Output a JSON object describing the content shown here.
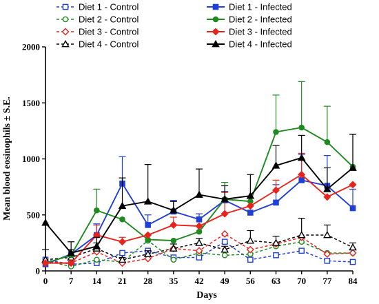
{
  "chart_data": {
    "type": "line",
    "xlabel": "Days",
    "ylabel": "Mean blood eosinophils ± S.E.",
    "ylim": [
      0,
      2000
    ],
    "x": [
      0,
      7,
      14,
      21,
      28,
      35,
      42,
      49,
      56,
      63,
      70,
      77,
      84
    ],
    "x_ticks": [
      "0",
      "7",
      "14",
      "21",
      "28",
      "35",
      "42",
      "49",
      "56",
      "63",
      "70",
      "77",
      "84"
    ],
    "y_ticks": [
      "0",
      "500",
      "1000",
      "1500",
      "2000"
    ],
    "y_tick_values": [
      0,
      500,
      1000,
      1500,
      2000
    ],
    "legend_position": "top",
    "series": [
      {
        "name": "Diet 1 - Control",
        "color": "#1f3fd6",
        "marker": "square-open",
        "line": "dashed",
        "values": [
          100,
          60,
          70,
          160,
          180,
          120,
          120,
          260,
          100,
          140,
          180,
          90,
          80
        ],
        "errors": [
          0,
          0,
          0,
          0,
          0,
          0,
          0,
          0,
          0,
          0,
          0,
          0,
          0
        ]
      },
      {
        "name": "Diet 2 - Control",
        "color": "#1f8a1f",
        "marker": "circle-open",
        "line": "dashed",
        "values": [
          90,
          40,
          100,
          80,
          270,
          100,
          160,
          140,
          150,
          220,
          260,
          160,
          160
        ],
        "errors": [
          0,
          0,
          0,
          0,
          0,
          0,
          0,
          0,
          0,
          0,
          0,
          0,
          0
        ]
      },
      {
        "name": "Diet 3 - Control",
        "color": "#e8231c",
        "marker": "diamond-open",
        "line": "dashed",
        "values": [
          80,
          70,
          170,
          70,
          110,
          200,
          180,
          330,
          190,
          240,
          300,
          150,
          160
        ],
        "errors": [
          0,
          0,
          0,
          0,
          0,
          0,
          0,
          0,
          0,
          0,
          0,
          0,
          0
        ]
      },
      {
        "name": "Diet 4 - Control",
        "color": "#000000",
        "marker": "triangle-open",
        "line": "dashed",
        "values": [
          100,
          120,
          200,
          100,
          150,
          200,
          250,
          190,
          270,
          250,
          320,
          320,
          210
        ],
        "errors": [
          90,
          70,
          50,
          20,
          30,
          40,
          40,
          30,
          90,
          60,
          150,
          90,
          40
        ]
      },
      {
        "name": "Diet 1 - Infected",
        "color": "#1f3fd6",
        "marker": "square",
        "line": "solid",
        "values": [
          60,
          150,
          320,
          780,
          410,
          530,
          460,
          630,
          520,
          610,
          810,
          760,
          560
        ],
        "errors": [
          0,
          0,
          100,
          240,
          90,
          100,
          50,
          80,
          0,
          160,
          230,
          270,
          170
        ]
      },
      {
        "name": "Diet 2 - Infected",
        "color": "#1f8a1f",
        "marker": "circle",
        "line": "solid",
        "values": [
          70,
          140,
          540,
          460,
          280,
          270,
          350,
          640,
          620,
          1240,
          1280,
          1150,
          930
        ],
        "errors": [
          0,
          0,
          190,
          0,
          0,
          0,
          0,
          150,
          0,
          330,
          410,
          320,
          290
        ]
      },
      {
        "name": "Diet 3 - Infected",
        "color": "#e8231c",
        "marker": "diamond",
        "line": "solid",
        "values": [
          70,
          70,
          320,
          260,
          320,
          410,
          400,
          510,
          580,
          720,
          860,
          660,
          770
        ],
        "errors": [
          0,
          0,
          90,
          40,
          0,
          70,
          0,
          190,
          0,
          90,
          190,
          0,
          0
        ]
      },
      {
        "name": "Diet 4 - Infected",
        "color": "#000000",
        "marker": "triangle",
        "line": "solid",
        "values": [
          430,
          160,
          220,
          580,
          620,
          540,
          680,
          640,
          670,
          940,
          1010,
          730,
          920
        ],
        "errors": [
          0,
          100,
          80,
          250,
          330,
          80,
          230,
          120,
          190,
          180,
          200,
          190,
          300
        ]
      }
    ]
  }
}
